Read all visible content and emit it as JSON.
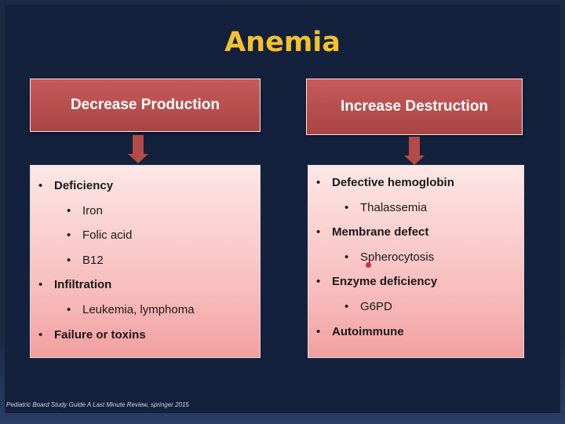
{
  "slide": {
    "title": "Anemia",
    "left": {
      "header": "Decrease Production",
      "items": [
        {
          "level": 1,
          "text": "Deficiency"
        },
        {
          "level": 2,
          "text": "Iron"
        },
        {
          "level": 2,
          "text": "Folic acid"
        },
        {
          "level": 2,
          "text": "B12"
        },
        {
          "level": 1,
          "text": "Infiltration"
        },
        {
          "level": 2,
          "text": "Leukemia, lymphoma"
        },
        {
          "level": 1,
          "text": "Failure or toxins"
        }
      ]
    },
    "right": {
      "header": "Increase Destruction",
      "items": [
        {
          "level": 1,
          "text": "Defective hemoglobin"
        },
        {
          "level": 2,
          "text": "Thalassemia"
        },
        {
          "level": 1,
          "text": "Membrane defect"
        },
        {
          "level": 2,
          "text": "Spherocytosis"
        },
        {
          "level": 1,
          "text": "Enzyme deficiency"
        },
        {
          "level": 2,
          "text": "G6PD"
        },
        {
          "level": 1,
          "text": "Autoimmune"
        }
      ]
    },
    "footer": "Pediatric Board Study Guide A Last Minute Review, springer 2015",
    "bullet": "•"
  },
  "colors": {
    "title": "#f2c12e",
    "header_box": "#b44a4a",
    "list_top": "#fde7e7",
    "list_bottom": "#f29f9f",
    "background": "#14213d",
    "pointer_dot": "#d62a4a"
  }
}
